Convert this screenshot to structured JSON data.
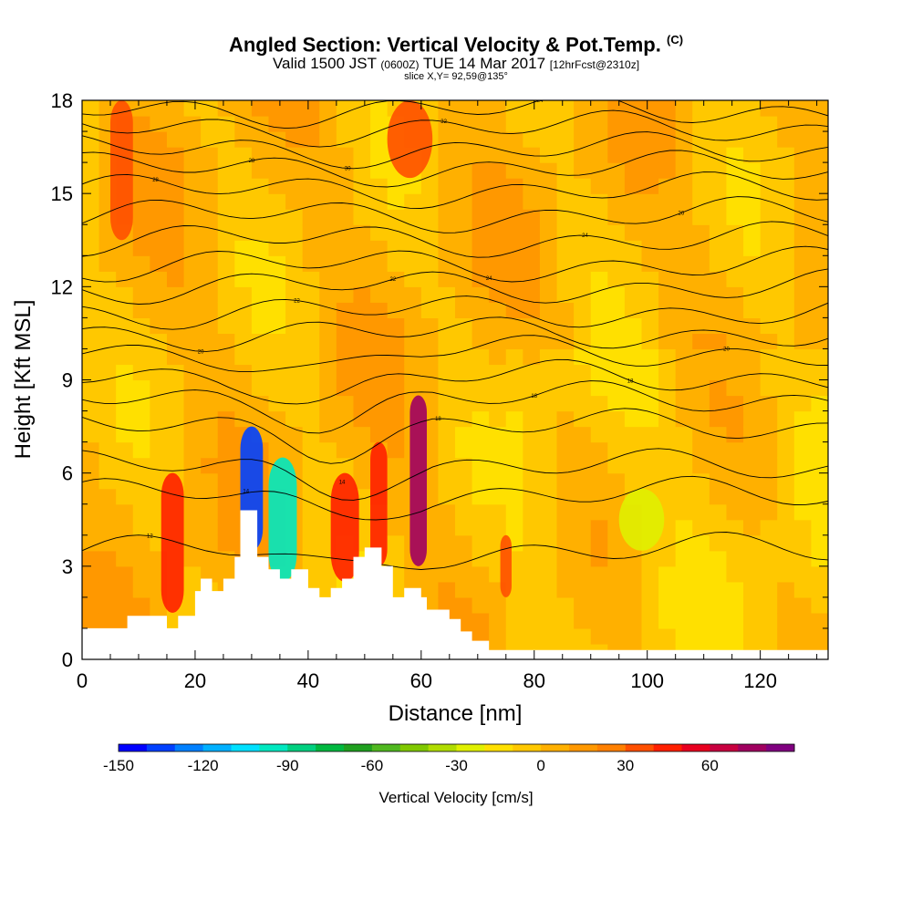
{
  "header": {
    "title_main": "Angled Section: Vertical Velocity & Pot.Temp.",
    "title_tag": "(C)",
    "valid_prefix": "Valid 1500 JST",
    "valid_utc": "(0600Z)",
    "valid_date": "TUE 14 Mar 2017",
    "forecast": "[12hrFcst@2310z]",
    "slice": "slice X,Y= 92,59@135°"
  },
  "chart_data": {
    "type": "heatmap",
    "xlabel": "Distance [nm]",
    "ylabel": "Height [Kft MSL]",
    "xlim": [
      0,
      132
    ],
    "ylim": [
      0,
      18
    ],
    "x_ticks": [
      "0",
      "20",
      "40",
      "60",
      "80",
      "100",
      "120"
    ],
    "y_ticks": [
      "0",
      "3",
      "6",
      "9",
      "12",
      "15",
      "18"
    ],
    "colorbar": {
      "label": "Vertical Velocity [cm/s]",
      "min": -150,
      "max": 80,
      "step": 10,
      "tick_labels": [
        "-150",
        "-120",
        "-90",
        "-60",
        "-30",
        "0",
        "30",
        "60"
      ],
      "colors": [
        "#0000ff",
        "#0040ff",
        "#0080ff",
        "#00b0ff",
        "#00e0ff",
        "#00e8c0",
        "#00d080",
        "#00b840",
        "#20a020",
        "#50b820",
        "#80c800",
        "#b0dc00",
        "#e0f000",
        "#ffe000",
        "#ffc800",
        "#ffb000",
        "#ff9800",
        "#ff8000",
        "#ff5000",
        "#ff2000",
        "#e80020",
        "#c80040",
        "#a00060",
        "#800080"
      ]
    },
    "terrain": [
      [
        0,
        1
      ],
      [
        8,
        1
      ],
      [
        8,
        1.4
      ],
      [
        15,
        1.4
      ],
      [
        15,
        1
      ],
      [
        17,
        1
      ],
      [
        17,
        1.4
      ],
      [
        20,
        1.4
      ],
      [
        20,
        2.2
      ],
      [
        21,
        2.2
      ],
      [
        21,
        2.6
      ],
      [
        23,
        2.6
      ],
      [
        23,
        2.2
      ],
      [
        25,
        2.2
      ],
      [
        25,
        2.6
      ],
      [
        27,
        2.6
      ],
      [
        27,
        3.3
      ],
      [
        28,
        3.3
      ],
      [
        28,
        4.8
      ],
      [
        31,
        4.8
      ],
      [
        31,
        3.3
      ],
      [
        33,
        3.3
      ],
      [
        33,
        2.9
      ],
      [
        35,
        2.9
      ],
      [
        35,
        2.6
      ],
      [
        37,
        2.6
      ],
      [
        37,
        2.9
      ],
      [
        40,
        2.9
      ],
      [
        40,
        2.3
      ],
      [
        42,
        2.3
      ],
      [
        42,
        2.0
      ],
      [
        44,
        2.0
      ],
      [
        44,
        2.3
      ],
      [
        46,
        2.3
      ],
      [
        46,
        2.6
      ],
      [
        48,
        2.6
      ],
      [
        48,
        3.3
      ],
      [
        50,
        3.3
      ],
      [
        50,
        3.6
      ],
      [
        53,
        3.6
      ],
      [
        53,
        3.0
      ],
      [
        55,
        3.0
      ],
      [
        55,
        2.0
      ],
      [
        57,
        2.0
      ],
      [
        57,
        2.3
      ],
      [
        60,
        2.3
      ],
      [
        60,
        2.0
      ],
      [
        61,
        2.0
      ],
      [
        61,
        1.6
      ],
      [
        65,
        1.6
      ],
      [
        65,
        1.3
      ],
      [
        67,
        1.3
      ],
      [
        67,
        0.9
      ],
      [
        69,
        0.9
      ],
      [
        69,
        0.6
      ],
      [
        72,
        0.6
      ],
      [
        72,
        0.3
      ],
      [
        132,
        0.3
      ]
    ],
    "velocity_cells": [
      {
        "x": [
          5,
          9
        ],
        "y": [
          13.5,
          18
        ],
        "v": 35
      },
      {
        "x": [
          14,
          18
        ],
        "y": [
          1.5,
          6
        ],
        "v": 40
      },
      {
        "x": [
          28,
          32
        ],
        "y": [
          3.5,
          7.5
        ],
        "v": -140
      },
      {
        "x": [
          33,
          38
        ],
        "y": [
          2.5,
          6.5
        ],
        "v": -100
      },
      {
        "x": [
          44,
          49
        ],
        "y": [
          2.5,
          6
        ],
        "v": 40
      },
      {
        "x": [
          51,
          54
        ],
        "y": [
          3,
          7
        ],
        "v": 40
      },
      {
        "x": [
          58,
          61
        ],
        "y": [
          3,
          8.5
        ],
        "v": 75
      },
      {
        "x": [
          54,
          62
        ],
        "y": [
          15.5,
          18
        ],
        "v": 35
      },
      {
        "x": [
          95,
          103
        ],
        "y": [
          3.5,
          5.5
        ],
        "v": -25
      },
      {
        "x": [
          74,
          76
        ],
        "y": [
          2,
          4
        ],
        "v": 30
      }
    ],
    "isentropes": {
      "levels": [
        "12",
        "14",
        "14",
        "18",
        "18",
        "18",
        "20",
        "20",
        "22",
        "22",
        "24",
        "24",
        "26",
        "28",
        "28",
        "30",
        "32",
        "34"
      ],
      "base_heights": [
        3.5,
        5.3,
        6.2,
        7.5,
        8.4,
        9.1,
        9.9,
        10.5,
        11.2,
        12.0,
        12.7,
        13.5,
        14.3,
        15.1,
        15.8,
        16.4,
        17.1,
        17.7
      ]
    }
  }
}
